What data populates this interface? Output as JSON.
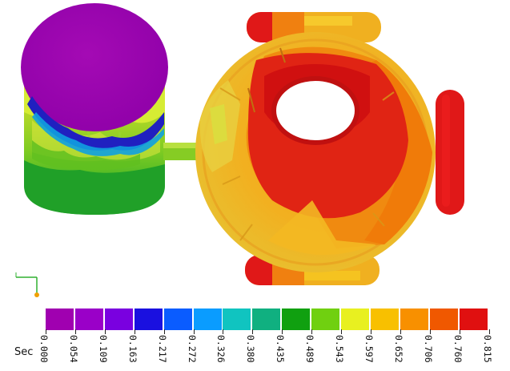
{
  "legend": {
    "unit": "Sec",
    "colors": [
      "#a000b0",
      "#9a00c8",
      "#7a00e0",
      "#1a10e0",
      "#0a5cff",
      "#0a9cff",
      "#10c4c0",
      "#10b080",
      "#10a010",
      "#70d010",
      "#e8f020",
      "#f8c000",
      "#f89000",
      "#f05800",
      "#e01010"
    ],
    "ticks": [
      "0.000",
      "0.054",
      "0.109",
      "0.163",
      "0.217",
      "0.272",
      "0.326",
      "0.380",
      "0.435",
      "0.489",
      "0.543",
      "0.597",
      "0.652",
      "0.706",
      "0.760",
      "0.815"
    ]
  }
}
